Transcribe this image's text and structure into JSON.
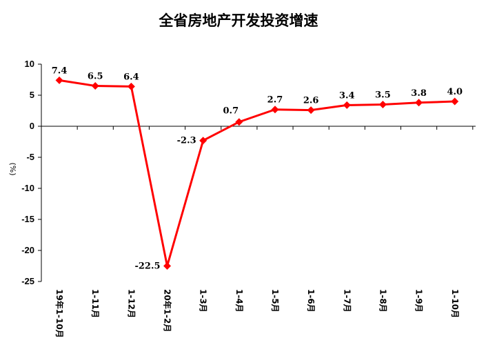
{
  "chart_data": {
    "type": "line",
    "title": "全省房地产开发投资增速",
    "ylabel": "(%)",
    "categories": [
      "19年1-10月",
      "1-11月",
      "1-12月",
      "20年1-2月",
      "1-3月",
      "1-4月",
      "1-5月",
      "1-6月",
      "1-7月",
      "1-8月",
      "1-9月",
      "1-10月"
    ],
    "series": [
      {
        "values": [
          7.4,
          6.5,
          6.4,
          -22.5,
          -2.3,
          0.7,
          2.7,
          2.6,
          3.4,
          3.5,
          3.8,
          4.0
        ],
        "labels": [
          "7.4",
          "6.5",
          "6.4",
          "-22.5",
          "-2.3",
          "0.7",
          "2.7",
          "2.6",
          "3.4",
          "3.5",
          "3.8",
          "4.0"
        ]
      }
    ],
    "ylim": [
      -25,
      10
    ],
    "yticks": [
      10,
      5,
      0,
      -5,
      -10,
      -15,
      -20,
      -25
    ],
    "grid": false,
    "legend": "none",
    "line_color": "#ff0000",
    "marker": "diamond"
  }
}
